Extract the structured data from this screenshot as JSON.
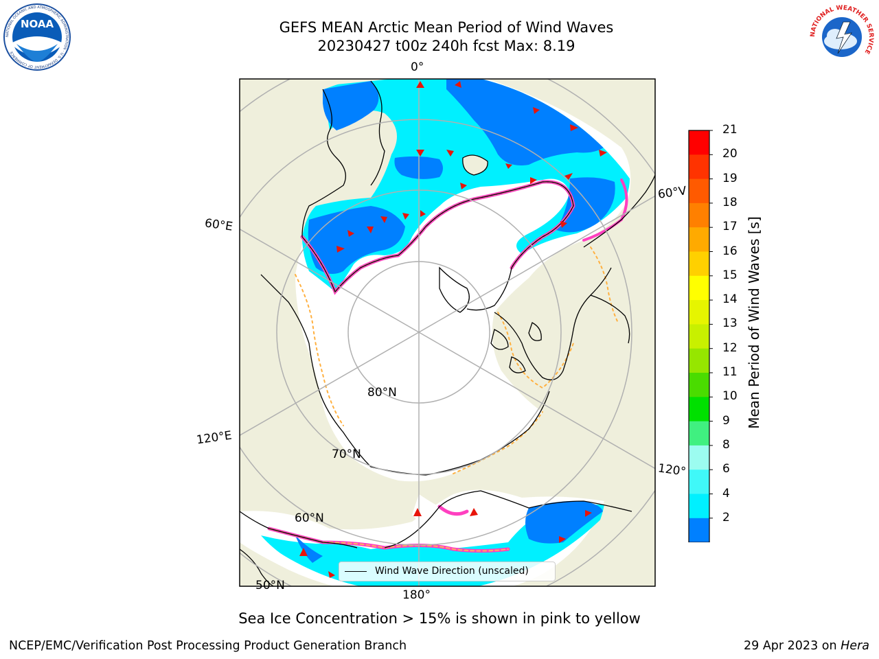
{
  "header": {
    "title_line1": "GEFS MEAN Arctic Mean Period of Wind Waves",
    "title_line2": "20230427 t00z 240h fcst   Max: 8.19"
  },
  "logos": {
    "noaa_text": "NOAA",
    "noaa_ring_text": "NATIONAL OCEANIC AND ATMOSPHERIC ADMINISTRATION · U.S. DEPARTMENT OF COMMERCE",
    "nws_ring_text": "NATIONAL WEATHER SERVICE"
  },
  "map": {
    "longitude_labels": [
      "0°",
      "60°E",
      "120°E",
      "180°",
      "120°",
      "60°V"
    ],
    "latitude_labels": [
      "80°N",
      "70°N",
      "60°N",
      "50°N"
    ],
    "legend": "Wind Wave Direction (unscaled)",
    "colors": {
      "land": "#efefdc",
      "ocean": "#ffffff",
      "grid": "#b0b0b0",
      "arrow": "#e8140a"
    }
  },
  "colorbar": {
    "title": "Mean Period of Wind Waves [s]",
    "ticks": [
      "21",
      "20",
      "19",
      "18",
      "17",
      "16",
      "15",
      "14",
      "13",
      "12",
      "11",
      "10",
      "9",
      "8",
      "6",
      "4",
      "2"
    ],
    "colors": [
      "#ff0000",
      "#ff3300",
      "#ff5a00",
      "#ff8000",
      "#ffaa00",
      "#ffd000",
      "#ffff00",
      "#e6f500",
      "#c8f000",
      "#96e600",
      "#4adc00",
      "#00e000",
      "#40f080",
      "#9cfcf0",
      "#40f8f8",
      "#00f0ff",
      "#0080ff"
    ],
    "extend_color": "#0000ff"
  },
  "footer": {
    "note": "Sea Ice Concentration > 15% is shown in pink to yellow",
    "left": "NCEP/EMC/Verification Post Processing Product Generation Branch",
    "right_date": "29 Apr 2023 on ",
    "right_host": "Hera"
  }
}
